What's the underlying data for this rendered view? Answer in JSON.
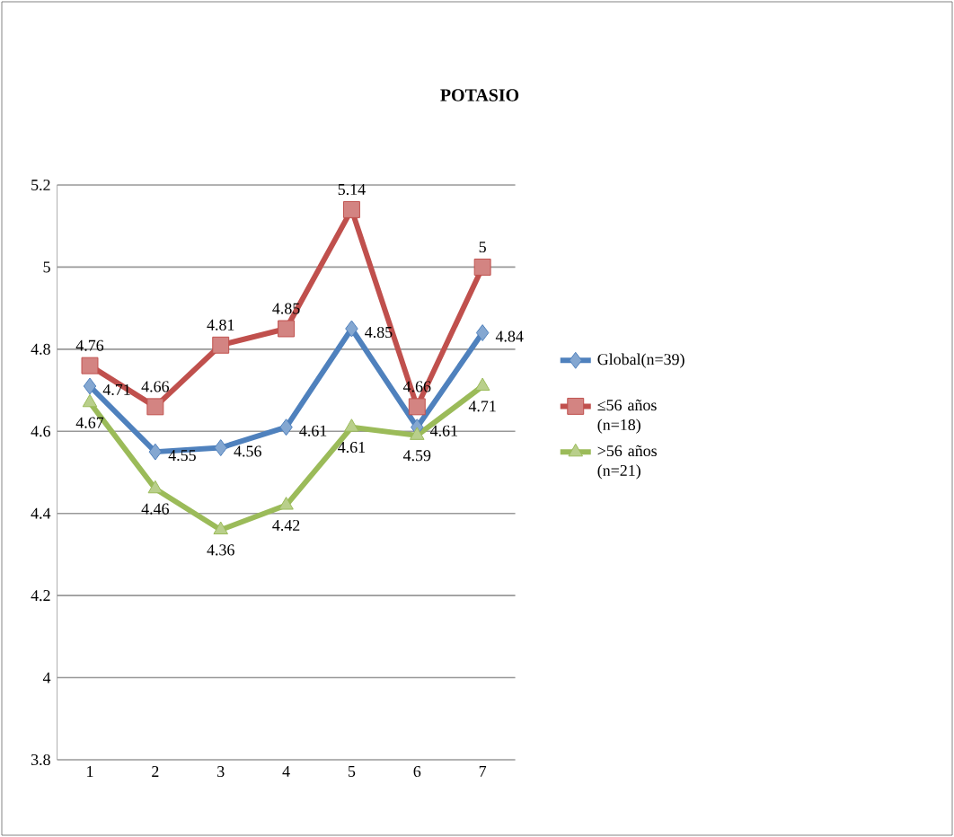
{
  "chart_data": {
    "type": "line",
    "title": "POTASIO",
    "categories": [
      "1",
      "2",
      "3",
      "4",
      "5",
      "6",
      "7"
    ],
    "series": [
      {
        "name": "Global(n=39)",
        "color": "#4f81bd",
        "marker": "diamond",
        "values": [
          4.71,
          4.55,
          4.56,
          4.61,
          4.85,
          4.61,
          4.84
        ]
      },
      {
        "name": "≤56 años (n=18)",
        "color": "#c0504d",
        "marker": "square",
        "values": [
          4.76,
          4.66,
          4.81,
          4.85,
          5.14,
          4.66,
          5
        ]
      },
      {
        "name": ">56 años (n=21)",
        "color": "#9bbb59",
        "marker": "triangle",
        "values": [
          4.67,
          4.46,
          4.36,
          4.42,
          4.61,
          4.59,
          4.71
        ]
      }
    ],
    "ylim": [
      3.8,
      5.2
    ],
    "yticks": [
      3.8,
      4,
      4.2,
      4.4,
      4.6,
      4.8,
      5,
      5.2
    ],
    "grid": "y",
    "legend": "right",
    "data_labels": true
  }
}
